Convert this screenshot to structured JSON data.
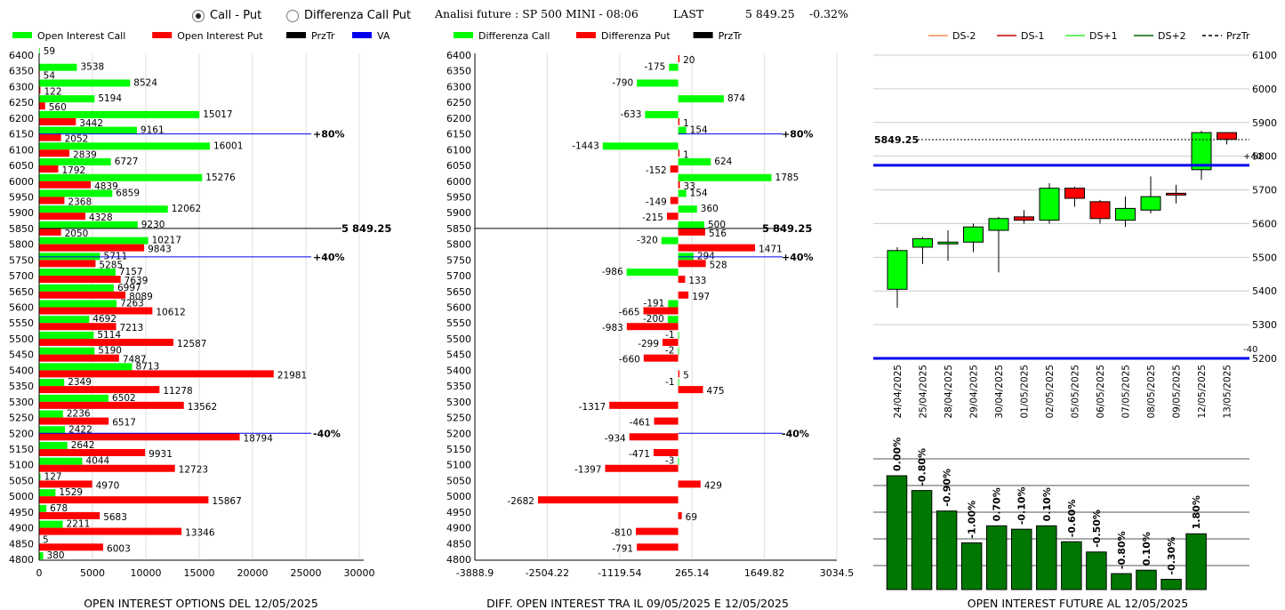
{
  "header": {
    "radio_call_put": "Call - Put",
    "radio_diff": "Differenza Call Put",
    "analysis": "Analisi future : SP 500 MINI - 08:06",
    "last_label": "LAST",
    "last_value": "5 849.25",
    "last_change": "-0.32%"
  },
  "colors": {
    "green": "#00ff00",
    "red": "#ff0000",
    "black": "#000000",
    "blue": "#0000ee",
    "dark_green": "#007700"
  },
  "chart_data": [
    {
      "type": "bar",
      "orientation": "horizontal",
      "title": "OPEN INTEREST OPTIONS DEL 12/05/2025",
      "legend": [
        "Open Interest Call",
        "Open Interest Put",
        "PrzTr",
        "VA"
      ],
      "categories": [
        6400,
        6350,
        6300,
        6250,
        6200,
        6150,
        6100,
        6050,
        6000,
        5950,
        5900,
        5850,
        5800,
        5750,
        5700,
        5650,
        5600,
        5550,
        5500,
        5450,
        5400,
        5350,
        5300,
        5250,
        5200,
        5150,
        5100,
        5050,
        5000,
        4950,
        4900,
        4850,
        4800
      ],
      "series": [
        {
          "name": "Open Interest Call",
          "values": [
            59,
            3538,
            8524,
            5194,
            15017,
            9161,
            16001,
            6727,
            15276,
            6859,
            12062,
            9230,
            10217,
            5711,
            7157,
            6997,
            7263,
            4692,
            5114,
            5190,
            8713,
            2349,
            6502,
            2236,
            2422,
            2642,
            4044,
            127,
            1529,
            678,
            2211,
            5,
            380
          ]
        },
        {
          "name": "Open Interest Put",
          "values": [
            0,
            54,
            122,
            560,
            3442,
            2052,
            2839,
            1792,
            4839,
            2368,
            4328,
            2050,
            9843,
            5285,
            7639,
            8089,
            10612,
            7213,
            12587,
            7487,
            21981,
            11278,
            13562,
            6517,
            18794,
            9931,
            12723,
            4970,
            15867,
            5683,
            13346,
            6003,
            0
          ]
        }
      ],
      "xticks": [
        0,
        5000,
        10000,
        15000,
        20000,
        25000,
        30000
      ],
      "xlim": [
        0,
        32000
      ],
      "price_line": {
        "strike": 5850,
        "label": "5 849.25"
      },
      "va_lines": [
        {
          "strike": 6150,
          "label": "+80%"
        },
        {
          "strike": 5760,
          "label": "+40%"
        },
        {
          "strike": 5200,
          "label": "-40%"
        }
      ]
    },
    {
      "type": "bar",
      "orientation": "horizontal",
      "title": "DIFF. OPEN INTEREST TRA IL 09/05/2025 E 12/05/2025",
      "legend": [
        "Differenza Call",
        "Differenza Put",
        "PrzTr"
      ],
      "categories": [
        6400,
        6350,
        6300,
        6250,
        6200,
        6150,
        6100,
        6050,
        6000,
        5950,
        5900,
        5850,
        5800,
        5750,
        5700,
        5650,
        5600,
        5550,
        5500,
        5450,
        5400,
        5350,
        5300,
        5250,
        5200,
        5150,
        5100,
        5050,
        5000,
        4950,
        4900,
        4850,
        4800
      ],
      "series": [
        {
          "name": "Differenza Call",
          "values": [
            null,
            -175,
            -790,
            874,
            -633,
            154,
            -1443,
            624,
            1785,
            154,
            360,
            500,
            -320,
            294,
            -986,
            null,
            -191,
            -200,
            -1,
            -2,
            null,
            -1,
            null,
            null,
            null,
            null,
            -3,
            null,
            null,
            null,
            null,
            null,
            null
          ]
        },
        {
          "name": "Differenza Put",
          "values": [
            20,
            null,
            null,
            null,
            1,
            null,
            1,
            -152,
            33,
            -149,
            -215,
            516,
            1471,
            528,
            133,
            197,
            -665,
            -983,
            -299,
            -660,
            5,
            475,
            -1317,
            -461,
            -934,
            -471,
            -1397,
            429,
            -2682,
            69,
            -810,
            -791,
            null
          ]
        }
      ],
      "xticks": [
        -3888.9,
        -2504.22,
        -1119.54,
        265.14,
        1649.82,
        3034.5
      ],
      "xlim": [
        -3888.9,
        3034.5
      ],
      "price_line": {
        "strike": 5850,
        "label": "5 849.25"
      },
      "va_lines": [
        {
          "strike": 6150,
          "label": "+80%"
        },
        {
          "strike": 5760,
          "label": "+40%"
        },
        {
          "strike": 5200,
          "label": "-40%"
        }
      ]
    },
    {
      "type": "candlestick",
      "legend": [
        "DS-2",
        "DS-1",
        "DS+1",
        "DS+2",
        "PrzTr"
      ],
      "categories": [
        "24/04/2025",
        "25/04/2025",
        "28/04/2025",
        "29/04/2025",
        "30/04/2025",
        "01/05/2025",
        "02/05/2025",
        "05/05/2025",
        "06/05/2025",
        "07/05/2025",
        "08/05/2025",
        "09/05/2025",
        "12/05/2025",
        "13/05/2025"
      ],
      "candles": [
        {
          "o": 5405,
          "h": 5530,
          "l": 5350,
          "c": 5520
        },
        {
          "o": 5530,
          "h": 5560,
          "l": 5480,
          "c": 5555
        },
        {
          "o": 5545,
          "h": 5580,
          "l": 5490,
          "c": 5545
        },
        {
          "o": 5545,
          "h": 5600,
          "l": 5515,
          "c": 5590
        },
        {
          "o": 5580,
          "h": 5620,
          "l": 5455,
          "c": 5615
        },
        {
          "o": 5620,
          "h": 5640,
          "l": 5600,
          "c": 5610
        },
        {
          "o": 5610,
          "h": 5720,
          "l": 5600,
          "c": 5705
        },
        {
          "o": 5705,
          "h": 5710,
          "l": 5650,
          "c": 5675
        },
        {
          "o": 5665,
          "h": 5670,
          "l": 5600,
          "c": 5615
        },
        {
          "o": 5610,
          "h": 5680,
          "l": 5590,
          "c": 5645
        },
        {
          "o": 5640,
          "h": 5740,
          "l": 5630,
          "c": 5680
        },
        {
          "o": 5690,
          "h": 5715,
          "l": 5660,
          "c": 5685
        },
        {
          "o": 5760,
          "h": 5875,
          "l": 5730,
          "c": 5870
        },
        {
          "o": 5870,
          "h": 5870,
          "l": 5835,
          "c": 5850
        }
      ],
      "yticks": [
        5200,
        5300,
        5400,
        5500,
        5600,
        5700,
        5800,
        5900,
        6000,
        6100
      ],
      "ylim": [
        5200,
        6100
      ],
      "price_line": {
        "value": 5849.25,
        "label": "5849.25"
      },
      "blue_lines": [
        5773,
        5200
      ],
      "side_labels": [
        "+40",
        "-40"
      ]
    },
    {
      "type": "bar",
      "title": "OPEN INTEREST FUTURE AL 12/05/2025",
      "labels": [
        "0.00%",
        "-0.80%",
        "-0.90%",
        "-1.00%",
        "0.70%",
        "-0.10%",
        "0.10%",
        "-0.60%",
        "-0.50%",
        "-0.80%",
        "0.10%",
        "-0.30%",
        "1.80%"
      ],
      "values": [
        100,
        87,
        69,
        41,
        56,
        53,
        56,
        42,
        33,
        14,
        17,
        9,
        49
      ]
    }
  ]
}
